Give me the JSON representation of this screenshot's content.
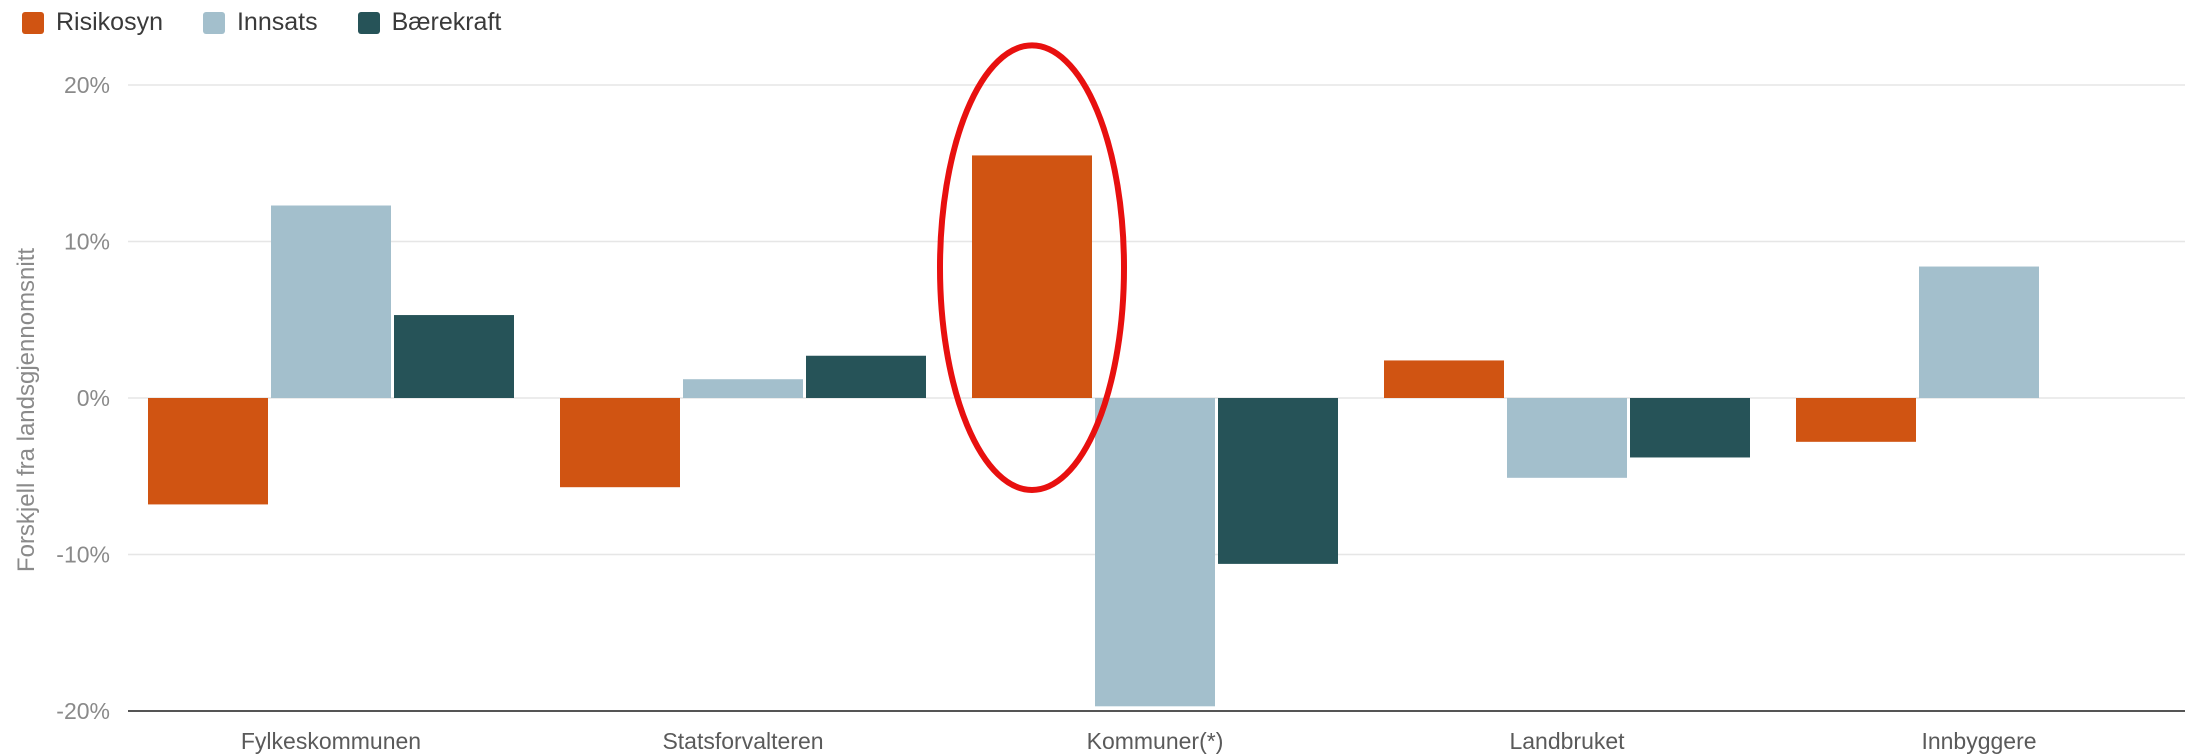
{
  "chart_data": {
    "type": "bar",
    "categories": [
      "Fylkeskommunen",
      "Statsforvalteren",
      "Kommuner(*)",
      "Landbruket",
      "Innbyggere"
    ],
    "series": [
      {
        "name": "Risikosyn",
        "color": "#d05412",
        "values": [
          -6.8,
          -5.7,
          15.5,
          2.4,
          -2.8
        ]
      },
      {
        "name": "Innsats",
        "color": "#a3bfcc",
        "values": [
          12.3,
          1.2,
          -19.7,
          -5.1,
          8.4
        ]
      },
      {
        "name": "Bærekraft",
        "color": "#265358",
        "values": [
          5.3,
          2.7,
          -10.6,
          -3.8,
          null
        ]
      }
    ],
    "ylabel": "Forskjell fra landsgjennomsnitt",
    "ylim": [
      -20,
      20
    ],
    "yticks": [
      {
        "value": 20,
        "label": "20%"
      },
      {
        "value": 10,
        "label": "10%"
      },
      {
        "value": 0,
        "label": "0%"
      },
      {
        "value": -10,
        "label": "-10%"
      },
      {
        "value": -20,
        "label": "-20%"
      }
    ],
    "grid": true,
    "legend_position": "top-left",
    "annotation": {
      "shape": "ellipse",
      "color": "#e8100f",
      "category": "Kommuner(*)",
      "series": "Risikosyn"
    }
  }
}
